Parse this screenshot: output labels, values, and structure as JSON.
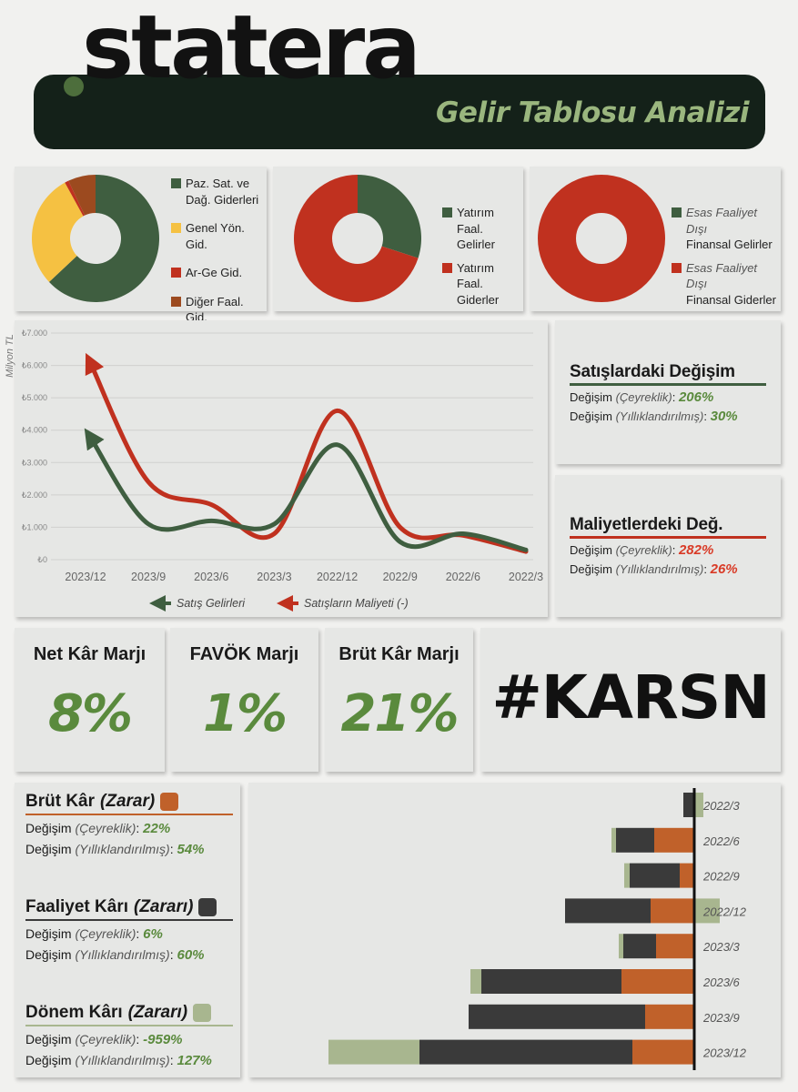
{
  "brand": {
    "name": "statera",
    "report_title": "Gelir Tablosu Analizi"
  },
  "colors": {
    "dark_green": "#3f5e40",
    "red": "#c0311f",
    "yellow": "#f5c142",
    "brown": "#9c4a1f",
    "orange": "#c0612a",
    "dark_gray": "#3a3a3a",
    "light_green": "#a8b68f",
    "accent_green": "#5a8a3d",
    "accent_red": "#d93a26"
  },
  "donut_charts": [
    {
      "id": "operating-expenses",
      "legend": [
        {
          "label": "Paz. Sat. ve Dağ. Giderleri",
          "color": "#3f5e40"
        },
        {
          "label": "Genel Yön. Gid.",
          "color": "#f5c142"
        },
        {
          "label": "Ar-Ge Gid.",
          "color": "#c0311f"
        },
        {
          "label": "Diğer Faal. Gid.",
          "color": "#9c4a1f"
        }
      ]
    },
    {
      "id": "investment-activities",
      "legend": [
        {
          "label": "Yatırım Faal. Gelirler",
          "color": "#3f5e40"
        },
        {
          "label": "Yatırım Faal. Giderler",
          "color": "#c0311f"
        }
      ]
    },
    {
      "id": "non-operating-finance",
      "legend": [
        {
          "label_italic": "Esas Faaliyet Dışı",
          "label": "Finansal Gelirler",
          "color": "#3f5e40"
        },
        {
          "label_italic": "Esas Faaliyet Dışı",
          "label": "Finansal Giderler",
          "color": "#c0311f"
        }
      ]
    }
  ],
  "sales_change": {
    "title": "Satışlardaki Değişim",
    "quarterly_label": "Değişim",
    "quarterly_note": "(Çeyreklik)",
    "quarterly_value": "206%",
    "annual_label": "Değişim",
    "annual_note": "(Yıllıklandırılmış)",
    "annual_value": "30%"
  },
  "cost_change": {
    "title": "Maliyetlerdeki Değ.",
    "quarterly_label": "Değişim",
    "quarterly_note": "(Çeyreklik)",
    "quarterly_value": "282%",
    "annual_label": "Değişim",
    "annual_note": "(Yıllıklandırılmış)",
    "annual_value": "26%"
  },
  "kpis": [
    {
      "title": "Net Kâr Marjı",
      "value": "8%"
    },
    {
      "title": "FAVÖK Marjı",
      "value": "1%"
    },
    {
      "title": "Brüt Kâr Marjı",
      "value": "21%"
    }
  ],
  "ticker": "#KARSN",
  "metrics": [
    {
      "title": "Brüt Kâr",
      "title_italic": "(Zarar)",
      "color": "#c0612a",
      "quarterly_label": "Değişim",
      "quarterly_note": "(Çeyreklik)",
      "quarterly_value": "22%",
      "annual_label": "Değişim",
      "annual_note": "(Yıllıklandırılmış)",
      "annual_value": "54%"
    },
    {
      "title": "Faaliyet Kârı",
      "title_italic": "(Zararı)",
      "color": "#3a3a3a",
      "quarterly_label": "Değişim",
      "quarterly_note": "(Çeyreklik)",
      "quarterly_value": "6%",
      "annual_label": "Değişim",
      "annual_note": "(Yıllıklandırılmış)",
      "annual_value": "60%"
    },
    {
      "title": "Dönem Kârı",
      "title_italic": "(Zararı)",
      "color": "#a8b68f",
      "quarterly_label": "Değişim",
      "quarterly_note": "(Çeyreklik)",
      "quarterly_value": "-959%",
      "annual_label": "Değişim",
      "annual_note": "(Yıllıklandırılmış)",
      "annual_value": "127%"
    }
  ],
  "chart_data": [
    {
      "type": "pie",
      "labels": [
        "Paz. Sat. ve Dağ. Giderleri",
        "Genel Yön. Gid.",
        "Ar-Ge Gid.",
        "Diğer Faal. Gid."
      ],
      "values": [
        63,
        29,
        1,
        7
      ]
    },
    {
      "type": "pie",
      "labels": [
        "Yatırım Faal. Gelirler",
        "Yatırım Faal. Giderler"
      ],
      "values": [
        30,
        70
      ]
    },
    {
      "type": "pie",
      "labels": [
        "Esas Faaliyet Dışı Finansal Gelirler",
        "Esas Faaliyet Dışı Finansal Giderler"
      ],
      "values": [
        0,
        100
      ]
    },
    {
      "type": "line",
      "ylabel": "Milyon TL",
      "categories": [
        "2023/12",
        "2023/9",
        "2023/6",
        "2023/3",
        "2022/12",
        "2022/9",
        "2022/6",
        "2022/3"
      ],
      "y_ticks": [
        "₺0",
        "₺1.000",
        "₺2.000",
        "₺3.000",
        "₺4.000",
        "₺5.000",
        "₺6.000",
        "₺7.000"
      ],
      "ylim": [
        0,
        7000
      ],
      "grid": true,
      "legend_position": "bottom",
      "series": [
        {
          "name": "Satış Gelirleri",
          "color": "#3f5e40",
          "values": [
            3800,
            1100,
            1200,
            1100,
            3550,
            550,
            800,
            300
          ]
        },
        {
          "name": "Satışların Maliyeti (-)",
          "color": "#c0311f",
          "values": [
            6100,
            2400,
            1700,
            800,
            4600,
            1000,
            750,
            250
          ]
        }
      ]
    },
    {
      "type": "bar",
      "orientation": "horizontal",
      "stacked": true,
      "categories": [
        "2022/3",
        "2022/6",
        "2022/9",
        "2022/12",
        "2023/3",
        "2023/6",
        "2023/9",
        "2023/12"
      ],
      "series": [
        {
          "name": "Brüt Kâr (Zarar)",
          "color": "#c0612a",
          "values": [
            0,
            44,
            16,
            48,
            42,
            80,
            54,
            68
          ]
        },
        {
          "name": "Faaliyet Kârı (Zararı)",
          "color": "#3a3a3a",
          "values": [
            12,
            42,
            55,
            94,
            36,
            154,
            194,
            234
          ]
        },
        {
          "name": "Dönem Kârı (Zararı)",
          "color": "#a8b68f",
          "values": [
            10,
            5,
            6,
            28,
            5,
            12,
            0,
            100
          ]
        }
      ],
      "positive_overflow": [
        10,
        0,
        0,
        28,
        0,
        0,
        0,
        0
      ]
    }
  ]
}
